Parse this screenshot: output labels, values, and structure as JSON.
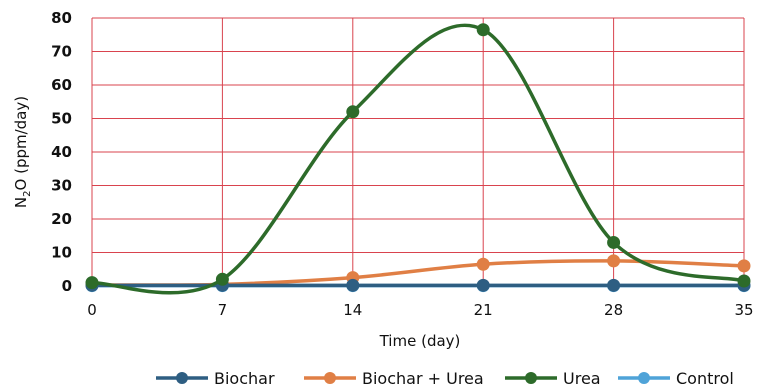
{
  "chart_data": {
    "type": "line",
    "xlabel": "Time (day)",
    "ylabel": {
      "prefix": "N",
      "subscript": "2",
      "suffix": "O (ppm/day)"
    },
    "x": [
      0,
      7,
      14,
      21,
      28,
      35
    ],
    "xticks": [
      0,
      7,
      14,
      21,
      28,
      35
    ],
    "xlim": [
      0,
      35
    ],
    "ylim": [
      0,
      80
    ],
    "yticks": [
      0,
      10,
      20,
      30,
      40,
      50,
      60,
      70,
      80
    ],
    "grid": true,
    "grid_color": "#d9434e",
    "smooth": true,
    "legend_position": "bottom",
    "series": [
      {
        "name": "Biochar",
        "values": [
          0.2,
          0.2,
          0.2,
          0.2,
          0.2,
          0.2
        ],
        "color": "#2e5e82"
      },
      {
        "name": "Biochar + Urea",
        "values": [
          0.3,
          0.5,
          2.5,
          6.5,
          7.5,
          6.0
        ],
        "color": "#e07f45"
      },
      {
        "name": "Urea",
        "values": [
          1.0,
          2.0,
          52.0,
          76.5,
          13.0,
          1.5
        ],
        "color": "#2d6b2a"
      },
      {
        "name": "Control",
        "values": [
          0.1,
          0.1,
          0.1,
          0.1,
          0.1,
          0.1
        ],
        "color": "#4fa3d8"
      }
    ],
    "draw_order": [
      3,
      1,
      0,
      2
    ]
  }
}
